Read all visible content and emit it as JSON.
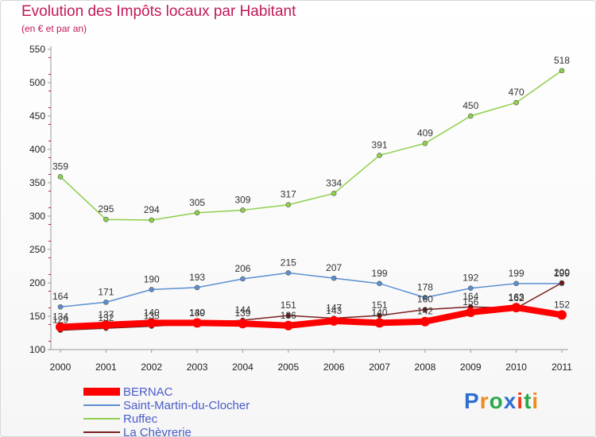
{
  "title": "Evolution des Impôts locaux par Habitant",
  "subtitle": "(en € et par an)",
  "logo": "Proxiti",
  "logo_colors": [
    "#2f6fd0",
    "#f08a1e",
    "#2aa84a",
    "#2f6fd0",
    "#e8401c",
    "#2aa84a",
    "#f08a1e"
  ],
  "chart_data": {
    "type": "line",
    "title": "Evolution des Impôts locaux par Habitant",
    "subtitle": "(en € et par an)",
    "xlabel": "",
    "ylabel": "",
    "x": [
      "2000",
      "2001",
      "2002",
      "2003",
      "2004",
      "2005",
      "2006",
      "2007",
      "2008",
      "2009",
      "2010",
      "2011"
    ],
    "yticks": [
      "100",
      "150",
      "200",
      "250",
      "300",
      "350",
      "400",
      "450",
      "500",
      "550"
    ],
    "ylim": [
      100,
      550
    ],
    "grid": false,
    "legend_position": "bottom-left",
    "series": [
      {
        "name": "BERNAC",
        "color": "#ff0000",
        "values": [
          134,
          137,
          140,
          140,
          139,
          136,
          143,
          140,
          142,
          156,
          163,
          152
        ],
        "labels": [
          "134",
          "137",
          "140",
          "140",
          "139",
          "136",
          "143",
          "140",
          "142",
          "156",
          "163",
          "152"
        ]
      },
      {
        "name": "Saint-Martin-du-Clocher",
        "color": "#5b8fd0",
        "values": [
          164,
          171,
          190,
          193,
          206,
          215,
          207,
          199,
          178,
          192,
          199,
          199
        ],
        "labels": [
          "164",
          "171",
          "190",
          "193",
          "206",
          "215",
          "207",
          "199",
          "178",
          "192",
          "199",
          "199"
        ]
      },
      {
        "name": "Ruffec",
        "color": "#8dd04a",
        "values": [
          359,
          295,
          294,
          305,
          309,
          317,
          334,
          391,
          409,
          450,
          470,
          518
        ],
        "labels": [
          "359",
          "295",
          "294",
          "305",
          "309",
          "317",
          "334",
          "391",
          "409",
          "450",
          "470",
          "518"
        ]
      },
      {
        "name": "La Chèvrerie",
        "color": "#7a1f1f",
        "values": [
          129,
          132,
          135,
          139,
          144,
          151,
          147,
          151,
          160,
          164,
          162,
          200
        ],
        "labels": [
          "129",
          "132",
          "135",
          "139",
          "144",
          "151",
          "147",
          "151",
          "160",
          "164",
          "162",
          "200"
        ]
      }
    ]
  }
}
